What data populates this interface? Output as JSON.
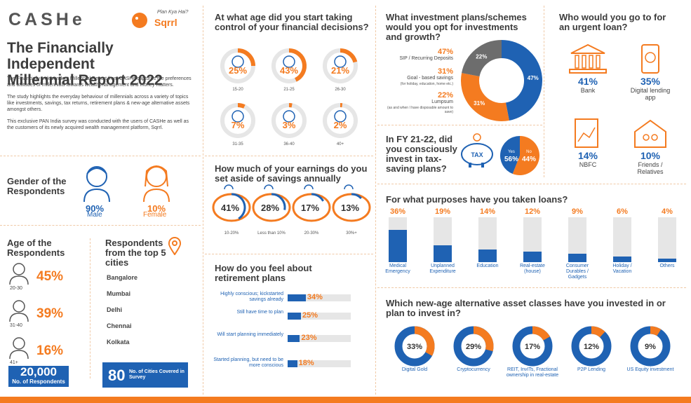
{
  "brand": {
    "cashe": "CASHe",
    "sqrrl_tag": "Plan Kya Hai?",
    "sqrrl": "Sqrrl"
  },
  "intro": {
    "title_line1": "The Financially Independent",
    "title_line2": "Millennial Report 2022",
    "p1": "The Financially Independent Millennial Report from CASHe captures the preferences and attitudes of millennials towards wealth management and money matters.",
    "p2": "The study highlights the everyday behaviour of millennials across a variety of topics like investments, savings, tax returns, retirement plans & new-age alternative assets amongst others.",
    "p3": "This exclusive PAN India survey was conducted with the users of CASHe as well as the customers of its newly acquired wealth management platform, Sqrrl."
  },
  "gender": {
    "title": "Gender of the Respondents",
    "male_pct": "90%",
    "male": "Male",
    "female_pct": "10%",
    "female": "Female"
  },
  "age": {
    "title": "Age of the Respondents",
    "rows": [
      {
        "label": "20-30",
        "pct": "45%"
      },
      {
        "label": "31-40",
        "pct": "39%"
      },
      {
        "label": "41+",
        "pct": "16%"
      }
    ]
  },
  "cities": {
    "title": "Respondents from the top 5 cities",
    "list": [
      "Bangalore",
      "Mumbai",
      "Delhi",
      "Chennai",
      "Kolkata"
    ]
  },
  "footer": {
    "respondents_num": "20,000",
    "respondents_label": "No. of Respondents",
    "cities_num": "80",
    "cities_label": "No. of Cities Covered in Survey"
  },
  "colors": {
    "orange": "#f47b20",
    "blue": "#1f62b3",
    "grey": "#6d6d6d",
    "light": "#e6e6e6"
  },
  "chart_data": [
    {
      "type": "pie",
      "title": "At what age did you start taking control of your financial decisions?",
      "categories": [
        "15-20",
        "21-25",
        "26-30",
        "31-35",
        "36-40",
        "40+"
      ],
      "values": [
        25,
        43,
        21,
        7,
        3,
        2
      ],
      "labels": [
        "25%",
        "43%",
        "21%",
        "7%",
        "3%",
        "2%"
      ]
    },
    {
      "type": "bar",
      "title": "How much of your earnings do you set aside of savings annually",
      "categories": [
        "10-20%",
        "Less than 10%",
        "20-30%",
        "30%+"
      ],
      "values": [
        41,
        28,
        17,
        13
      ],
      "labels": [
        "41%",
        "28%",
        "17%",
        "13%"
      ]
    },
    {
      "type": "bar",
      "title": "How do you feel about retirement plans",
      "categories": [
        "Highly conscious; kickstarted savings already",
        "Still have time to plan",
        "Will start planning immediately",
        "Started planning, but need to be more conscious"
      ],
      "values": [
        34,
        25,
        23,
        18
      ],
      "labels": [
        "34%",
        "25%",
        "23%",
        "18%"
      ]
    },
    {
      "type": "pie",
      "title": "What investment plans/schemes would you opt for investments and growth?",
      "categories": [
        "SIP / Recurring Deposits",
        "Goal - based savings",
        "Lumpsum"
      ],
      "notes": [
        "",
        "(for holiday, education, home etc.)",
        "(as and when I have disposable amount to save)"
      ],
      "values": [
        47,
        31,
        22
      ],
      "labels": [
        "47%",
        "31%",
        "22%"
      ]
    },
    {
      "type": "pie",
      "title": "In FY 21-22, did you consciously invest in tax-saving plans?",
      "icon": "TAX",
      "categories": [
        "Yes",
        "No"
      ],
      "values": [
        56,
        44
      ],
      "labels": [
        "56%",
        "44%"
      ]
    },
    {
      "type": "bar",
      "title": "Who would you go to for an urgent loan?",
      "categories": [
        "Bank",
        "Digital lending app",
        "NBFC",
        "Friends / Relatives"
      ],
      "values": [
        41,
        35,
        14,
        10
      ],
      "labels": [
        "41%",
        "35%",
        "14%",
        "10%"
      ]
    },
    {
      "type": "bar",
      "title": "For what purposes have you taken loans?",
      "categories": [
        "Medical Emergency",
        "Unplanned Expenditure",
        "Education",
        "Real-estate (house)",
        "Consumer Durables / Gadgets",
        "Holiday / Vacation",
        "Others"
      ],
      "values": [
        36,
        19,
        14,
        12,
        9,
        6,
        4
      ],
      "labels": [
        "36%",
        "19%",
        "14%",
        "12%",
        "9%",
        "6%",
        "4%"
      ]
    },
    {
      "type": "pie",
      "title": "Which new-age alternative asset classes have you invested in or plan to invest in?",
      "categories": [
        "Digital Gold",
        "Cryptocurrency",
        "REIT, InvITs, Fractional ownership in real-estate",
        "P2P Lending",
        "US Equity investment"
      ],
      "values": [
        33,
        29,
        17,
        12,
        9
      ],
      "labels": [
        "33%",
        "29%",
        "17%",
        "12%",
        "9%"
      ]
    }
  ]
}
